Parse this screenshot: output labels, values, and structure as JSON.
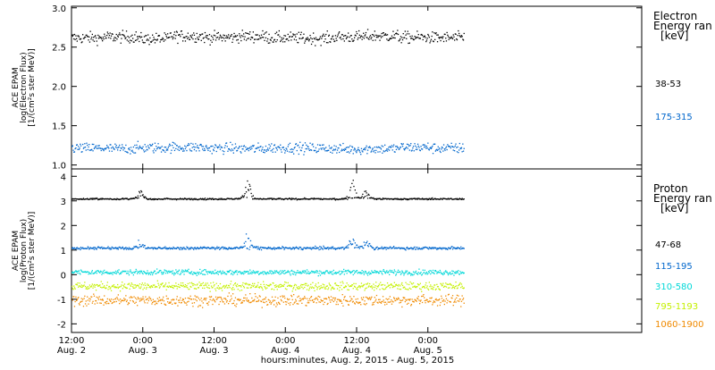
{
  "chart_data": [
    {
      "type": "scatter",
      "ylabel_lines": [
        "ACE EPAM",
        "log(Electron Flux)",
        "[1/(cm²s ster MeV)]"
      ],
      "ylim": [
        0.95,
        3.02
      ],
      "yticks": [
        1.0,
        1.5,
        2.0,
        2.5,
        3.0
      ],
      "ytick_labels": [
        "1.0",
        "1.5",
        "2.0",
        "2.5",
        "3.0"
      ],
      "legend_title_lines": [
        "Electron",
        "Energy ran",
        "[keV]"
      ],
      "series": [
        {
          "name": "38-53",
          "color": "#000000",
          "baseline": 2.63,
          "spread": 0.09,
          "values": [
            2.62,
            2.64,
            2.6,
            2.66,
            2.63,
            2.65,
            2.62,
            2.61,
            2.64,
            2.66,
            2.63,
            2.62,
            2.7
          ]
        },
        {
          "name": "175-315",
          "color": "#0066cc",
          "baseline": 1.22,
          "spread": 0.08,
          "values": [
            1.22,
            1.21,
            1.23,
            1.24,
            1.22,
            1.21,
            1.23,
            1.22,
            1.2,
            1.21,
            1.24,
            1.22,
            1.28
          ]
        }
      ]
    },
    {
      "type": "scatter",
      "ylabel_lines": [
        "ACE EPAM",
        "log(Proton Flux)",
        "[1/(cm²s ster MeV)]"
      ],
      "ylim": [
        -2.35,
        4.3
      ],
      "yticks": [
        -2,
        -1,
        0,
        1,
        2,
        3,
        4
      ],
      "ytick_labels": [
        "-2",
        "-1",
        "0",
        "1",
        "2",
        "3",
        "4"
      ],
      "legend_title_lines": [
        "Proton",
        "Energy ran",
        "[keV]"
      ],
      "series": [
        {
          "name": "47-68",
          "color": "#000000",
          "baseline": 3.1,
          "spread": 0.04
        },
        {
          "name": "115-195",
          "color": "#0066cc",
          "baseline": 1.1,
          "spread": 0.07
        },
        {
          "name": "310-580",
          "color": "#00d8d8",
          "baseline": 0.12,
          "spread": 0.13
        },
        {
          "name": "795-1193",
          "color": "#c4f000",
          "baseline": -0.45,
          "spread": 0.2
        },
        {
          "name": "1060-1900",
          "color": "#f08a00",
          "baseline": -1.02,
          "spread": 0.27
        }
      ]
    }
  ],
  "x_axis": {
    "range_hours": [
      0,
      96
    ],
    "ticks": [
      {
        "hour": 0,
        "time": "12:00",
        "date": "Aug. 2"
      },
      {
        "hour": 12,
        "time": "0:00",
        "date": "Aug. 3"
      },
      {
        "hour": 24,
        "time": "12:00",
        "date": "Aug. 3"
      },
      {
        "hour": 36,
        "time": "0:00",
        "date": "Aug. 4"
      },
      {
        "hour": 48,
        "time": "12:00",
        "date": "Aug. 4"
      },
      {
        "hour": 60,
        "time": "0:00",
        "date": "Aug. 5"
      }
    ],
    "data_end_hour": 66,
    "label": "hours:minutes, Aug.  2, 2015 - Aug.  5, 2015"
  }
}
